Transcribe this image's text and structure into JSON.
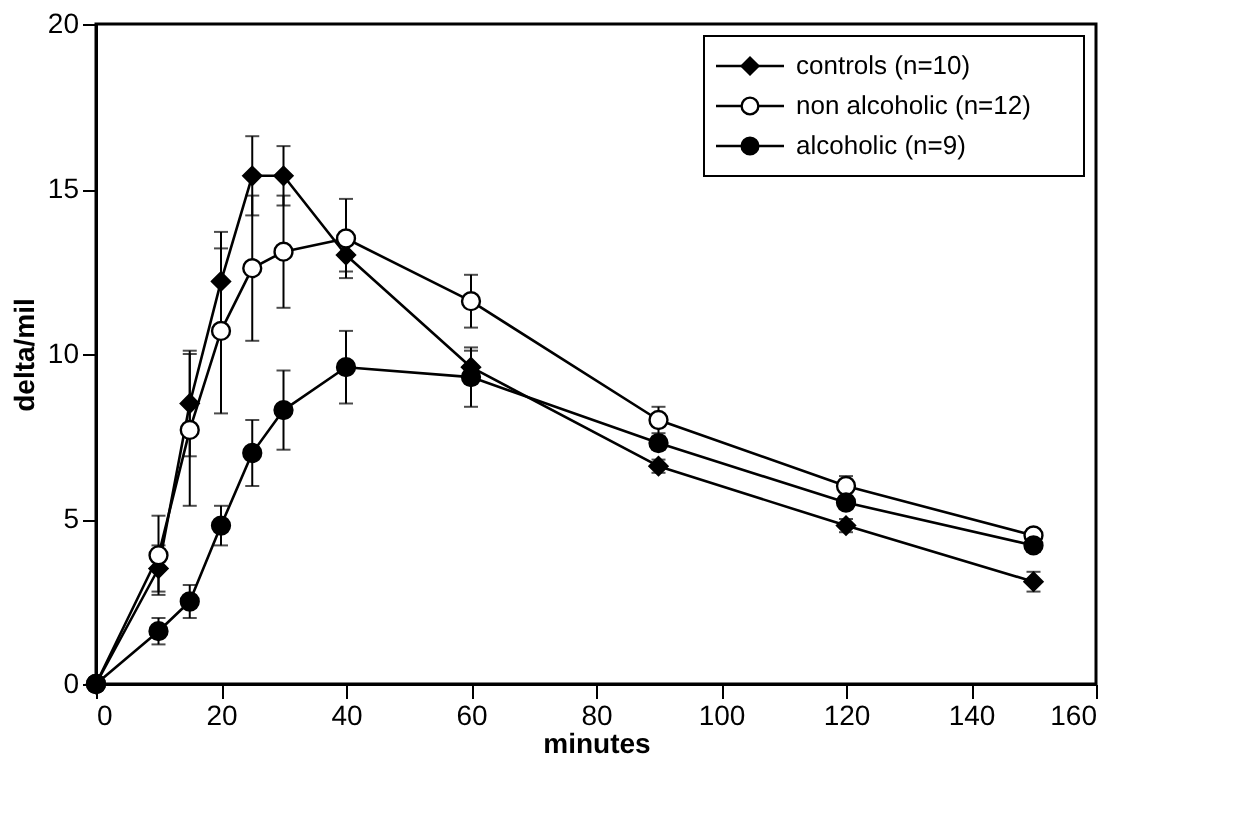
{
  "chart_data": {
    "type": "line",
    "xlabel": "minutes",
    "ylabel": "delta/mil",
    "x": [
      0,
      10,
      15,
      20,
      25,
      30,
      40,
      60,
      90,
      120,
      150
    ],
    "series": [
      {
        "name": "controls (n=10)",
        "color": "#000000",
        "marker": "diamond",
        "values": [
          0,
          3.5,
          8.5,
          12.2,
          15.4,
          15.4,
          13.0,
          9.6,
          6.6,
          4.8,
          3.1
        ],
        "errors": [
          null,
          0.7,
          1.6,
          1.5,
          1.2,
          0.9,
          0.5,
          0.5,
          0.2,
          0.2,
          0.3
        ]
      },
      {
        "name": "non alcoholic (n=12)",
        "color": "#000000",
        "marker": "open circle",
        "values": [
          0,
          3.9,
          7.7,
          10.7,
          12.6,
          13.1,
          13.5,
          11.6,
          8.0,
          6.0,
          4.5
        ],
        "errors": [
          null,
          1.2,
          2.3,
          2.5,
          2.2,
          1.7,
          1.2,
          0.8,
          0.4,
          0.3,
          0.2
        ]
      },
      {
        "name": "alcoholic (n=9)",
        "color": "#000000",
        "marker": "circle",
        "values": [
          0,
          1.6,
          2.5,
          4.8,
          7.0,
          8.3,
          9.6,
          9.3,
          7.3,
          5.5,
          4.2
        ],
        "errors": [
          null,
          0.4,
          0.5,
          0.6,
          1.0,
          1.2,
          1.1,
          0.9,
          0.2,
          0.2,
          0.2
        ]
      }
    ],
    "xlim": [
      0,
      160
    ],
    "xticks": [
      0,
      20,
      40,
      60,
      80,
      100,
      120,
      140,
      160
    ],
    "ylim": [
      0,
      20
    ],
    "yticks": [
      0,
      5,
      10,
      15,
      20
    ],
    "grid": false,
    "legend": "top right",
    "line_style": "solid"
  }
}
